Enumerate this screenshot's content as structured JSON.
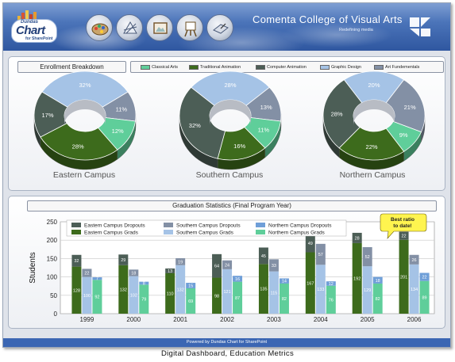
{
  "header": {
    "logo_line1": "Dundas",
    "logo_line2": "Chart",
    "logo_line3": "for SharePoint",
    "brand_title": "Comenta College of Visual Arts",
    "tagline": "Redefining media",
    "tools": [
      "palette-icon",
      "drafting-icon",
      "canvas-icon",
      "easel-icon",
      "tablet-icon"
    ]
  },
  "enrollment": {
    "title": "Enrollment Breakdown",
    "legend": [
      {
        "label": "Classical Arts",
        "color": "#5fce9a"
      },
      {
        "label": "Traditional Animation",
        "color": "#3d6b1c"
      },
      {
        "label": "Computer Animation",
        "color": "#4c5e56"
      },
      {
        "label": "Graphic Design",
        "color": "#a5c3e6"
      },
      {
        "label": "Art Fundementals",
        "color": "#8390a5"
      }
    ],
    "campuses": [
      {
        "name": "Eastern Campus",
        "slices": [
          12,
          28,
          17,
          32,
          11
        ]
      },
      {
        "name": "Southern Campus",
        "slices": [
          11,
          16,
          32,
          28,
          13
        ]
      },
      {
        "name": "Northern Campus",
        "slices": [
          9,
          22,
          28,
          20,
          21
        ]
      }
    ]
  },
  "graduation": {
    "title": "Graduation Statistics (Final Program Year)",
    "callout": [
      "Best ratio",
      "to date!"
    ]
  },
  "footer": "Powered by Dundas Chart for SharePoint",
  "caption": "Digital Dashboard, Education Metrics",
  "chart_data": {
    "type": "bar",
    "title": "Graduation Statistics (Final Program Year)",
    "ylabel": "Students",
    "ylim": [
      0,
      250
    ],
    "yticks": [
      0,
      50,
      100,
      150,
      200,
      250
    ],
    "categories": [
      "1999",
      "2000",
      "2001",
      "2002",
      "2003",
      "2004",
      "2005",
      "2006"
    ],
    "series": [
      {
        "name": "Eastern Campus Grads",
        "campus": "Eastern",
        "kind": "grads",
        "color": "#3d6b1c",
        "values": [
          128,
          132,
          110,
          98,
          135,
          167,
          192,
          201
        ]
      },
      {
        "name": "Eastern Campus Dropouts",
        "campus": "Eastern",
        "kind": "dropouts",
        "color": "#4c5e56",
        "values": [
          32,
          29,
          13,
          64,
          45,
          49,
          28,
          22
        ]
      },
      {
        "name": "Southern Campus Grads",
        "campus": "Southern",
        "kind": "grads",
        "color": "#a5c3e6",
        "values": [
          100,
          102,
          132,
          121,
          115,
          133,
          129,
          134
        ]
      },
      {
        "name": "Southern Campus Dropouts",
        "campus": "Southern",
        "kind": "dropouts",
        "color": "#8390a5",
        "values": [
          22,
          18,
          19,
          24,
          33,
          57,
          52,
          26
        ]
      },
      {
        "name": "Northern Campus Grads",
        "campus": "Northern",
        "kind": "grads",
        "color": "#5fce9a",
        "values": [
          92,
          79,
          69,
          87,
          82,
          76,
          82,
          89
        ]
      },
      {
        "name": "Northern Campus Dropouts",
        "campus": "Northern",
        "kind": "dropouts",
        "color": "#6f9fd8",
        "values": [
          7,
          8,
          15,
          16,
          14,
          12,
          18,
          22
        ]
      }
    ],
    "legend": [
      "Eastern Campus Dropouts",
      "Southern Campus Dropouts",
      "Northern Campus Dropouts",
      "Eastern Campus Grads",
      "Southern Campus Grads",
      "Northern Campus Grads"
    ],
    "legend_placement": "top-left",
    "grid": true
  }
}
